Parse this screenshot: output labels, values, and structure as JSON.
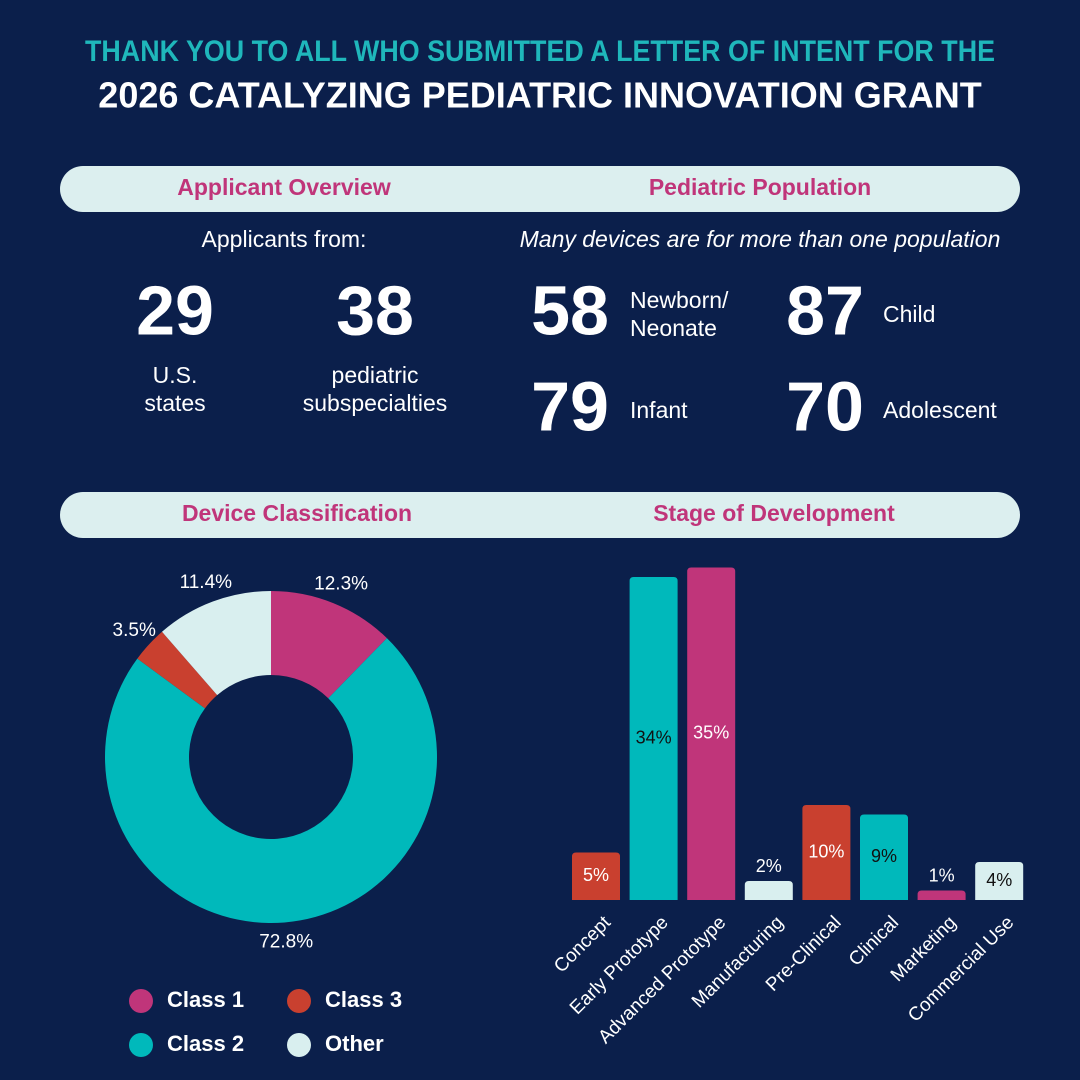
{
  "header": {
    "line1": "THANK YOU TO ALL WHO SUBMITTED A LETTER OF INTENT FOR THE",
    "line2": "2026 CATALYZING PEDIATRIC INNOVATION GRANT"
  },
  "overview": {
    "title": "Applicant Overview",
    "subtitle": "Applicants from:",
    "stats": [
      {
        "number": 29,
        "label": [
          "U.S.",
          "states"
        ]
      },
      {
        "number": 38,
        "label": [
          "pediatric",
          "subspecialties"
        ]
      }
    ]
  },
  "population": {
    "title": "Pediatric Population",
    "note": "Many devices are for more than one population",
    "groups": [
      {
        "number": 58,
        "label": [
          "Newborn/",
          "Neonate"
        ]
      },
      {
        "number": 87,
        "label": [
          "Child"
        ]
      },
      {
        "number": 79,
        "label": [
          "Infant"
        ]
      },
      {
        "number": 70,
        "label": [
          "Adolescent"
        ]
      }
    ]
  },
  "chart_data": [
    {
      "type": "donut",
      "title": "Device Classification",
      "categories": [
        "Class 1",
        "Class 2",
        "Class 3",
        "Other"
      ],
      "values": [
        12.3,
        72.8,
        3.5,
        11.4
      ],
      "value_labels": [
        "12.3%",
        "72.8%",
        "3.5%",
        "11.4%"
      ],
      "colors": [
        "#c0357a",
        "#00b9bb",
        "#c9402f",
        "#d9efef"
      ]
    },
    {
      "type": "bar",
      "title": "Stage of Development",
      "categories": [
        "Concept",
        "Early Prototype",
        "Advanced Prototype",
        "Manufacturing",
        "Pre-Clinical",
        "Clinical",
        "Marketing",
        "Commercial Use"
      ],
      "values": [
        5,
        34,
        35,
        2,
        10,
        9,
        1,
        4
      ],
      "value_labels": [
        "5%",
        "34%",
        "35%",
        "2%",
        "10%",
        "9%",
        "1%",
        "4%"
      ],
      "colors": [
        "#c9402f",
        "#00b9bb",
        "#c0357a",
        "#d9efef",
        "#c9402f",
        "#00b9bb",
        "#c0357a",
        "#d9efef"
      ]
    }
  ]
}
